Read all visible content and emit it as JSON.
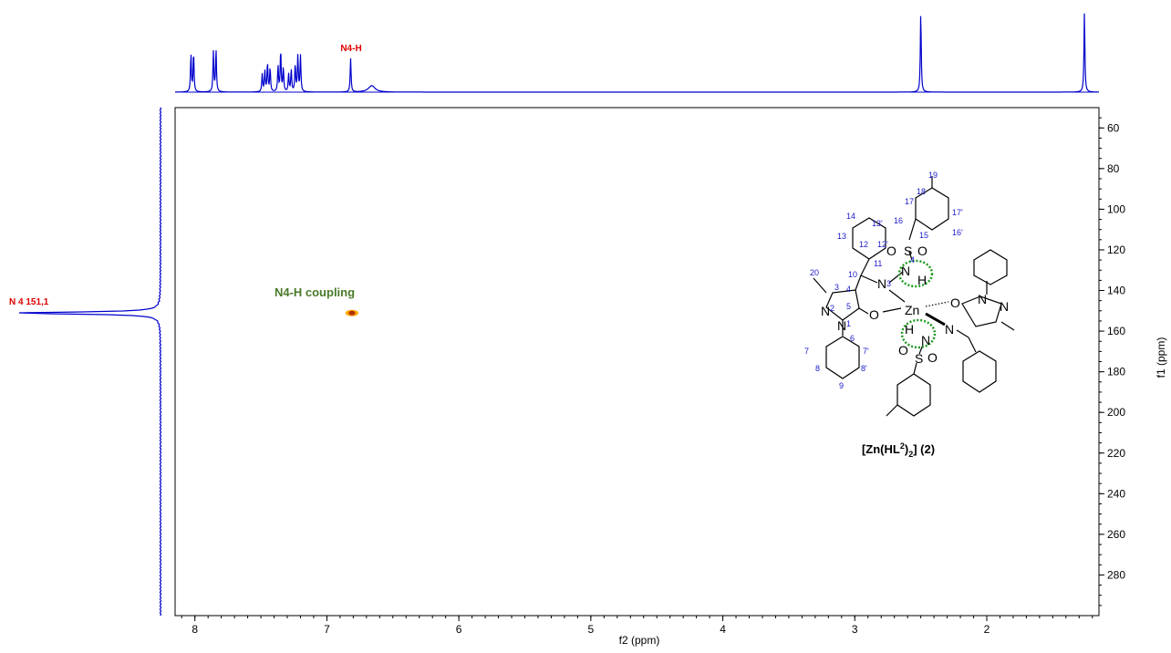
{
  "chart_data": {
    "type": "heatmap",
    "title": "",
    "xlabel": "f2 (ppm)",
    "ylabel": "f1 (ppm)",
    "xlim": [
      8.15,
      1.15
    ],
    "ylim": [
      300,
      50
    ],
    "x_ticks": [
      "8",
      "7",
      "6",
      "5",
      "4",
      "3",
      "2"
    ],
    "y_ticks": [
      "60",
      "80",
      "100",
      "120",
      "140",
      "160",
      "180",
      "200",
      "220",
      "240",
      "260",
      "280"
    ],
    "grid": false,
    "cross_peaks": [
      {
        "x": 6.81,
        "y": 151.1,
        "label": "N4-H coupling"
      }
    ],
    "f2_projection": {
      "name": "1H",
      "peak_label": "N4-H",
      "peaks": [
        {
          "x": 8.03,
          "h": 0.47
        },
        {
          "x": 8.01,
          "h": 0.49
        },
        {
          "x": 7.86,
          "h": 0.5
        },
        {
          "x": 7.84,
          "h": 0.53
        },
        {
          "x": 7.49,
          "h": 0.22
        },
        {
          "x": 7.47,
          "h": 0.26
        },
        {
          "x": 7.45,
          "h": 0.36
        },
        {
          "x": 7.43,
          "h": 0.3
        },
        {
          "x": 7.37,
          "h": 0.32
        },
        {
          "x": 7.35,
          "h": 0.52
        },
        {
          "x": 7.33,
          "h": 0.3
        },
        {
          "x": 7.29,
          "h": 0.22
        },
        {
          "x": 7.27,
          "h": 0.28
        },
        {
          "x": 7.24,
          "h": 0.34
        },
        {
          "x": 7.22,
          "h": 0.45
        },
        {
          "x": 7.2,
          "h": 0.45
        },
        {
          "x": 6.82,
          "h": 0.42
        },
        {
          "x": 6.66,
          "h": 0.08
        },
        {
          "x": 2.5,
          "h": 1.0
        },
        {
          "x": 1.26,
          "h": 1.0
        }
      ]
    },
    "f1_projection": {
      "name": "15N",
      "peak_label": "N 4  151,1",
      "peaks": [
        {
          "y": 151.1,
          "h": 1.0
        }
      ]
    }
  },
  "structure": {
    "compound_label": "[Zn(HL",
    "compound_sup": "2",
    "compound_close": ")",
    "compound_sub": "2",
    "compound_tail": "] (2)",
    "metal": "Zn",
    "atom_numbers": [
      "19",
      "18",
      "17",
      "17'",
      "16",
      "16'",
      "15",
      "14",
      "13'",
      "13",
      "12",
      "12'",
      "11",
      "10",
      "20",
      "3",
      "4",
      "5",
      "2",
      "1",
      "6",
      "7",
      "7'",
      "8",
      "8'",
      "9",
      "3",
      "4"
    ]
  },
  "colors": {
    "spectrum": "#0000cc",
    "axis": "#000000",
    "label_red": "#e00000",
    "coupling_green": "#4a7a2a",
    "numbering_blue": "#1a1acc",
    "circle_green": "#1e9a1e",
    "peak_core": "#b03000",
    "peak_ring": "#ffa500"
  }
}
